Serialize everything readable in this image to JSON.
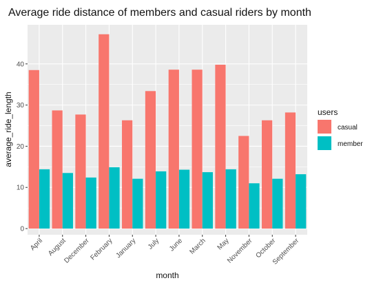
{
  "chart_data": {
    "type": "bar",
    "title": "Average ride distance of members and casual riders by month",
    "xlabel": "month",
    "ylabel": "average_ride_length",
    "categories": [
      "April",
      "August",
      "December",
      "February",
      "January",
      "July",
      "June",
      "March",
      "May",
      "November",
      "October",
      "September"
    ],
    "series": [
      {
        "name": "casual",
        "color": "#F8766D",
        "values": [
          38.5,
          28.7,
          27.7,
          47.2,
          26.3,
          33.4,
          38.6,
          38.6,
          39.8,
          22.5,
          26.3,
          28.2
        ]
      },
      {
        "name": "member",
        "color": "#00BFC4",
        "values": [
          14.4,
          13.5,
          12.4,
          14.9,
          12.1,
          13.9,
          14.3,
          13.7,
          14.4,
          11.0,
          12.1,
          13.2
        ]
      }
    ],
    "ylim": [
      -1.5,
      49.5
    ],
    "yticks": [
      0,
      10,
      20,
      30,
      40
    ],
    "grid": true,
    "legend": {
      "title": "users",
      "position": "right"
    },
    "panel_background": "#EBEBEB"
  }
}
